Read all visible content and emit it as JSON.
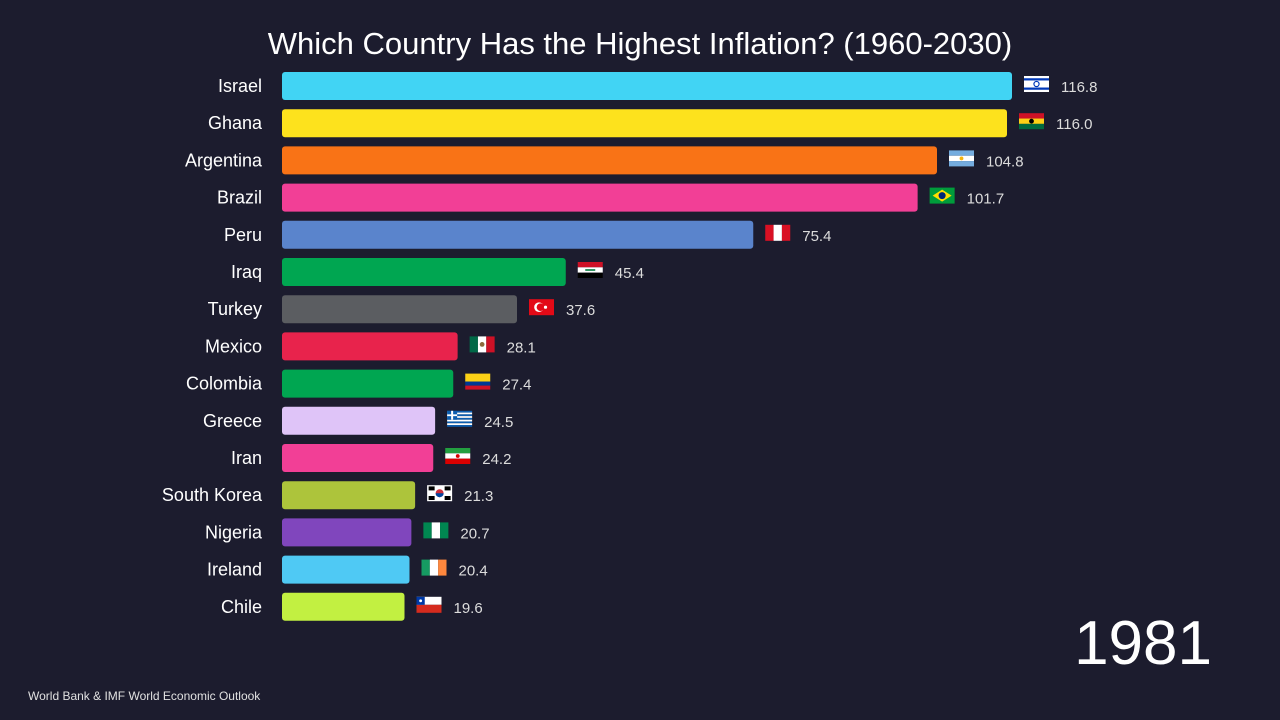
{
  "chart_data": {
    "type": "bar",
    "orientation": "horizontal",
    "title": "Which Country Has the Highest Inflation? (1960-2030)",
    "period_label": "1981",
    "source": "World Bank & IMF World Economic Outlook",
    "xlim": [
      0,
      128
    ],
    "grid": false,
    "legend": "none",
    "categories": [
      "Israel",
      "Ghana",
      "Argentina",
      "Brazil",
      "Peru",
      "Iraq",
      "Turkey",
      "Mexico",
      "Colombia",
      "Greece",
      "Iran",
      "South Korea",
      "Nigeria",
      "Ireland",
      "Chile"
    ],
    "values": [
      116.8,
      116.0,
      104.8,
      101.7,
      75.4,
      45.4,
      37.6,
      28.1,
      27.4,
      24.5,
      24.2,
      21.3,
      20.7,
      20.4,
      19.6
    ],
    "value_labels": [
      "116.8",
      "116.0",
      "104.8",
      "101.7",
      "75.4",
      "45.4",
      "37.6",
      "28.1",
      "27.4",
      "24.5",
      "24.2",
      "21.3",
      "20.7",
      "20.4",
      "19.6"
    ],
    "colors": [
      "#41d4f4",
      "#fde21d",
      "#f97316",
      "#f23f96",
      "#5a84cc",
      "#00a651",
      "#5b5d61",
      "#e8234c",
      "#00a651",
      "#dfc4f8",
      "#f23f96",
      "#adc43b",
      "#8046bd",
      "#4fc9f4",
      "#c2f041"
    ],
    "flags": [
      "israel-flag-icon",
      "ghana-flag-icon",
      "argentina-flag-icon",
      "brazil-flag-icon",
      "peru-flag-icon",
      "iraq-flag-icon",
      "turkey-flag-icon",
      "mexico-flag-icon",
      "colombia-flag-icon",
      "greece-flag-icon",
      "iran-flag-icon",
      "south-korea-flag-icon",
      "nigeria-flag-icon",
      "ireland-flag-icon",
      "chile-flag-icon"
    ]
  }
}
